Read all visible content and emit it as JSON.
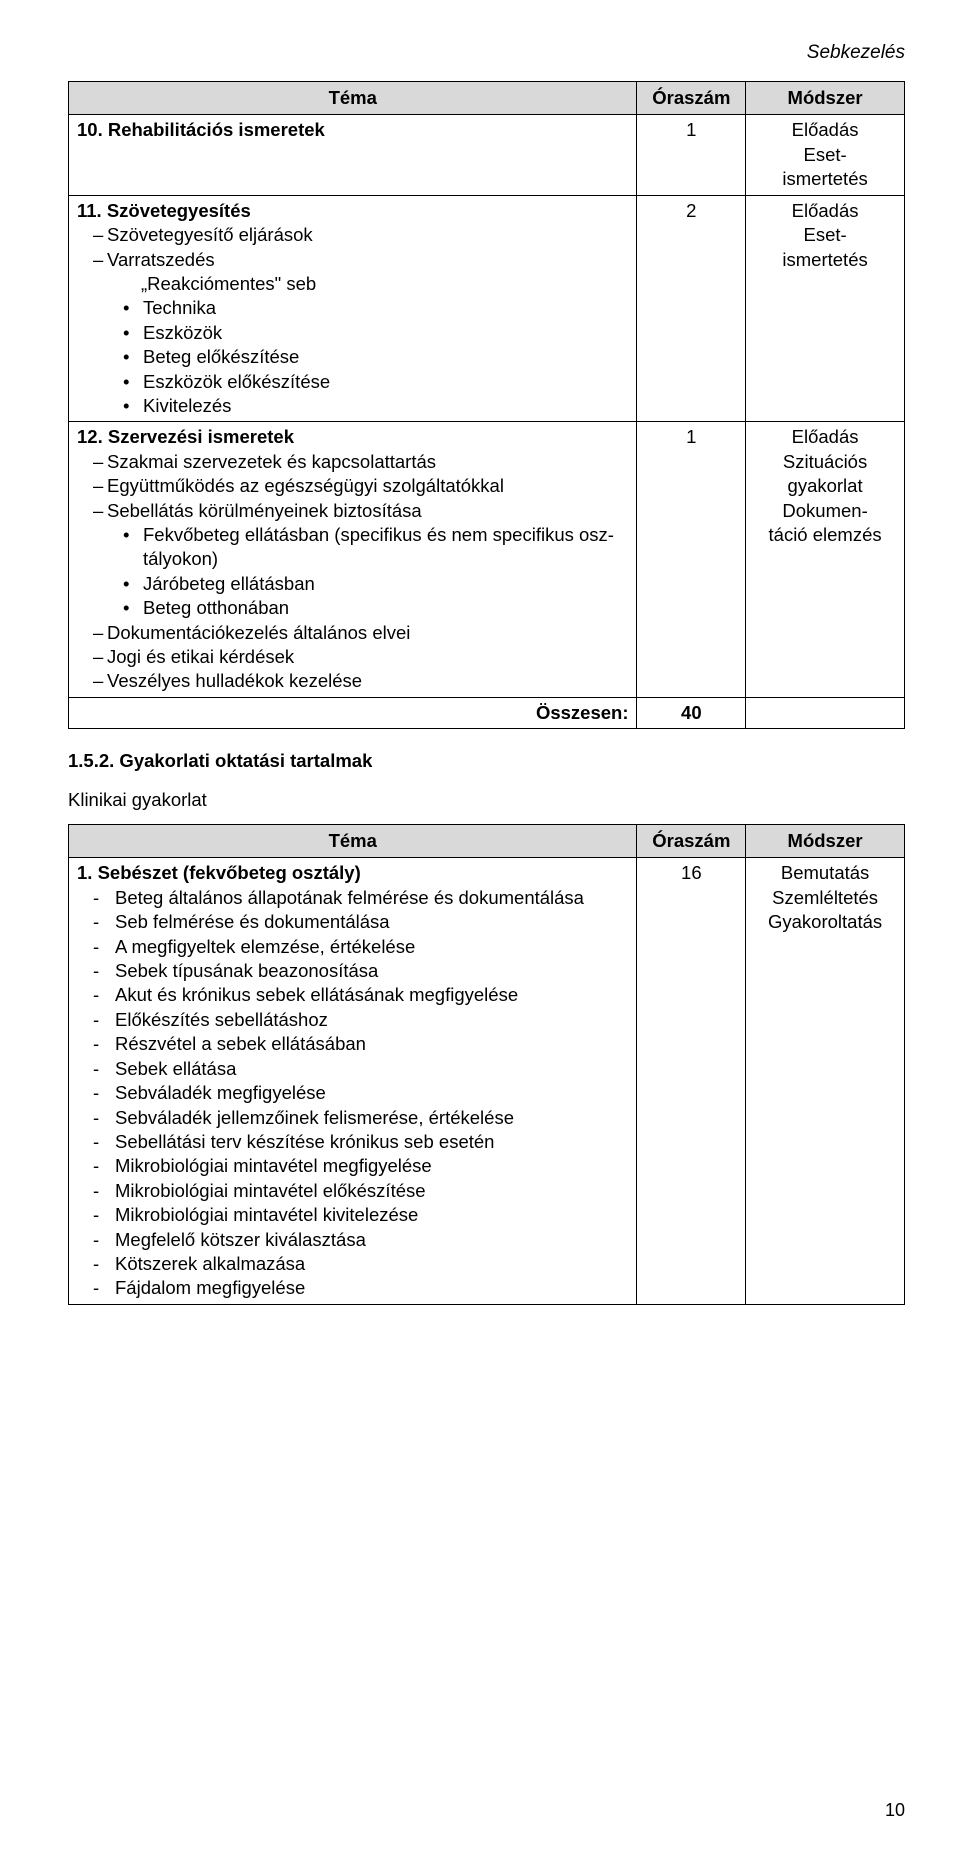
{
  "corner_title": "Sebkezelés",
  "table1": {
    "headers": {
      "topic": "Téma",
      "hours": "Óraszám",
      "method": "Módszer"
    },
    "rows": [
      {
        "title": "10.  Rehabilitációs ismeretek",
        "hours": "1",
        "method": "Előadás\nEset-\nismertetés"
      },
      {
        "title": "11.  Szövetegyesítés",
        "dash": [
          "Szövetegyesítő eljárások",
          "Varratszedés"
        ],
        "quoted": "„Reakciómentes\" seb",
        "bullets": [
          "Technika",
          "Eszközök",
          "Beteg előkészítése",
          "Eszközök előkészítése",
          "Kivitelezés"
        ],
        "hours": "2",
        "method": "Előadás\nEset-\nismertetés"
      },
      {
        "title": "12.  Szervezési ismeretek",
        "dash1": [
          "Szakmai szervezetek és kapcsolattartás",
          "Együttműködés az egészségügyi szolgáltatókkal",
          "Sebellátás körülményeinek biztosítása"
        ],
        "bullets": [
          "Fekvőbeteg ellátásban (specifikus és nem specifikus osz-\ntályokon)",
          "Járóbeteg ellátásban",
          "Beteg otthonában"
        ],
        "dash2": [
          "Dokumentációkezelés általános elvei",
          "Jogi és etikai kérdések",
          "Veszélyes hulladékok kezelése"
        ],
        "hours": "1",
        "method": "Előadás\nSzituációs\ngyakorlat\nDokumen-\ntáció elemzés"
      }
    ],
    "sum_label": "Összesen:",
    "sum_value": "40"
  },
  "section_head": "1.5.2. Gyakorlati oktatási tartalmak",
  "subhead": "Klinikai gyakorlat",
  "table2": {
    "headers": {
      "topic": "Téma",
      "hours": "Óraszám",
      "method": "Módszer"
    },
    "row": {
      "title": "1.  Sebészet (fekvőbeteg osztály)",
      "items": [
        "Beteg általános állapotának felmérése és dokumentálása",
        "Seb felmérése és dokumentálása",
        "A megfigyeltek elemzése, értékelése",
        "Sebek típusának beazonosítása",
        "Akut és krónikus sebek ellátásának megfigyelése",
        "Előkészítés sebellátáshoz",
        "Részvétel a sebek ellátásában",
        "Sebek ellátása",
        "Sebváladék megfigyelése",
        "Sebváladék jellemzőinek felismerése, értékelése",
        "Sebellátási terv készítése krónikus seb esetén",
        "Mikrobiológiai mintavétel megfigyelése",
        "Mikrobiológiai mintavétel előkészítése",
        "Mikrobiológiai mintavétel kivitelezése",
        "Megfelelő kötszer kiválasztása",
        "Kötszerek alkalmazása",
        "Fájdalom megfigyelése"
      ],
      "hours": "16",
      "method": "Bemutatás\nSzemléltetés\nGyakoroltatás"
    }
  },
  "page_number": "10"
}
